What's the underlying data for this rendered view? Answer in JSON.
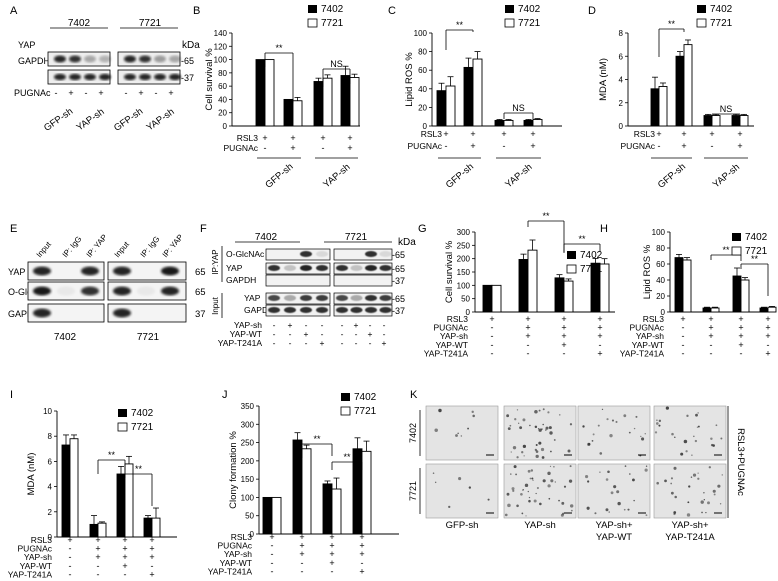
{
  "panel_letters": [
    "A",
    "B",
    "C",
    "D",
    "E",
    "F",
    "G",
    "H",
    "I",
    "J",
    "K"
  ],
  "legend": {
    "dark": "7402",
    "light": "7721"
  },
  "sig": {
    "double": "**",
    "ns": "NS"
  },
  "symbols": {
    "plus": "+",
    "minus": "-"
  },
  "blot_A": {
    "cell_lines": [
      "7402",
      "7721"
    ],
    "unit": "kDa",
    "rows": [
      "YAP",
      "GAPDH"
    ],
    "mw": [
      "-65",
      "-37"
    ],
    "pugnac_label": "PUGNAc",
    "pugnac_signs": [
      "-",
      "+",
      "-",
      "+",
      "-",
      "+",
      "-",
      "+"
    ],
    "groups": [
      "GFP-sh",
      "YAP-sh",
      "GFP-sh",
      "YAP-sh"
    ]
  },
  "blot_E": {
    "lanes": [
      "Input",
      "IP: IgG",
      "IP: YAP",
      "Input",
      "IP: IgG",
      "IP: YAP"
    ],
    "rows": [
      "YAP",
      "O-GlcNAc",
      "GAPDH"
    ],
    "mw": [
      "65",
      "65",
      "37"
    ],
    "cell_lines": [
      "7402",
      "7721"
    ]
  },
  "blot_F": {
    "cell_lines": [
      "7402",
      "7721"
    ],
    "unit": "kDa",
    "ip_label": "IP:YAP",
    "input_label": "Input",
    "ip_rows": [
      "O-GlcNAc",
      "YAP",
      "GAPDH"
    ],
    "ip_mw": [
      "-65",
      "-65",
      "-37"
    ],
    "input_rows": [
      "YAP",
      "GAPDH"
    ],
    "input_mw": [
      "-65",
      "-37"
    ],
    "cond_labels": [
      "YAP-sh",
      "YAP-WT",
      "YAP-T241A"
    ],
    "cond_signs": [
      [
        "-",
        "+",
        "-",
        "-",
        "-",
        "+",
        "-",
        "-"
      ],
      [
        "-",
        "-",
        "+",
        "-",
        "-",
        "-",
        "+",
        "-"
      ],
      [
        "-",
        "-",
        "-",
        "+",
        "-",
        "-",
        "-",
        "+"
      ]
    ]
  },
  "panel_K": {
    "rows": [
      "7402",
      "7721"
    ],
    "cols": [
      "GFP-sh",
      "YAP-sh",
      "YAP-sh+\nYAP-WT",
      "YAP-sh+\nYAP-T241A"
    ],
    "col_line1": [
      "GFP-sh",
      "YAP-sh",
      "YAP-sh+",
      "YAP-sh+"
    ],
    "col_line2": [
      "",
      "",
      "YAP-WT",
      "YAP-T241A"
    ],
    "side_label": "RSL3+PUGNAc"
  },
  "chart_data": [
    {
      "id": "B",
      "type": "bar",
      "ylabel": "Cell survival %",
      "ylim": [
        0,
        140
      ],
      "yticks": [
        0,
        20,
        40,
        60,
        80,
        100,
        120,
        140
      ],
      "series": [
        {
          "name": "7402",
          "values": [
            100,
            40,
            67,
            76
          ]
        },
        {
          "name": "7721",
          "values": [
            100,
            38,
            72,
            73
          ]
        }
      ],
      "errors": [
        [
          0,
          0,
          5,
          14
        ],
        [
          0,
          5,
          5,
          5
        ]
      ],
      "row_labels": [
        "RSL3",
        "PUGNAc"
      ],
      "signs": [
        [
          "+",
          "+",
          "+",
          "+"
        ],
        [
          "-",
          "+",
          "-",
          "+"
        ]
      ],
      "groups": [
        "GFP-sh",
        "YAP-sh"
      ],
      "brackets": [
        {
          "from": 0,
          "to": 1,
          "label": "**"
        },
        {
          "from": 2,
          "to": 3,
          "label": "NS"
        }
      ]
    },
    {
      "id": "C",
      "type": "bar",
      "ylabel": "Lipid ROS %",
      "ylim": [
        0,
        100
      ],
      "yticks": [
        0,
        20,
        40,
        60,
        80,
        100
      ],
      "series": [
        {
          "name": "7402",
          "values": [
            38,
            63,
            6,
            6
          ]
        },
        {
          "name": "7721",
          "values": [
            43,
            72,
            6,
            7
          ]
        }
      ],
      "errors": [
        [
          8,
          10,
          1,
          1
        ],
        [
          10,
          8,
          1,
          1
        ]
      ],
      "row_labels": [
        "RSL3",
        "PUGNAc"
      ],
      "signs": [
        [
          "+",
          "+",
          "+",
          "+"
        ],
        [
          "-",
          "+",
          "-",
          "+"
        ]
      ],
      "groups": [
        "GFP-sh",
        "YAP-sh"
      ],
      "brackets": [
        {
          "from": 0,
          "to": 1,
          "label": "**"
        },
        {
          "from": 2,
          "to": 3,
          "label": "NS"
        }
      ]
    },
    {
      "id": "D",
      "type": "bar",
      "ylabel": "MDA (nM)",
      "ylim": [
        0,
        8
      ],
      "yticks": [
        0,
        2,
        4,
        6,
        8
      ],
      "series": [
        {
          "name": "7402",
          "values": [
            3.2,
            6.0,
            0.9,
            0.9
          ]
        },
        {
          "name": "7721",
          "values": [
            3.4,
            7.0,
            0.9,
            0.9
          ]
        }
      ],
      "errors": [
        [
          1.0,
          0.4,
          0.1,
          0.1
        ],
        [
          0.3,
          0.4,
          0.1,
          0.1
        ]
      ],
      "row_labels": [
        "RSL3",
        "PUGNAc"
      ],
      "signs": [
        [
          "+",
          "+",
          "+",
          "+"
        ],
        [
          "-",
          "+",
          "-",
          "+"
        ]
      ],
      "groups": [
        "GFP-sh",
        "YAP-sh"
      ],
      "brackets": [
        {
          "from": 0,
          "to": 1,
          "label": "**"
        },
        {
          "from": 2,
          "to": 3,
          "label": "NS"
        }
      ]
    },
    {
      "id": "G",
      "type": "bar",
      "ylabel": "Cell survival %",
      "ylim": [
        0,
        300
      ],
      "yticks": [
        0,
        50,
        100,
        150,
        200,
        250,
        300
      ],
      "series": [
        {
          "name": "7402",
          "values": [
            100,
            197,
            128,
            183
          ]
        },
        {
          "name": "7721",
          "values": [
            100,
            232,
            116,
            180
          ]
        }
      ],
      "errors": [
        [
          0,
          20,
          12,
          18
        ],
        [
          0,
          38,
          8,
          20
        ]
      ],
      "row_labels": [
        "RSL3",
        "PUGNAc",
        "YAP-sh",
        "YAP-WT",
        "YAP-T241A"
      ],
      "signs": [
        [
          "+",
          "+",
          "+",
          "+"
        ],
        [
          "-",
          "+",
          "+",
          "+"
        ],
        [
          "-",
          "+",
          "+",
          "+"
        ],
        [
          "-",
          "-",
          "+",
          "-"
        ],
        [
          "-",
          "-",
          "-",
          "+"
        ]
      ],
      "brackets": [
        {
          "from": 1,
          "to": 2,
          "label": "**"
        },
        {
          "from": 2,
          "to": 3,
          "label": "**"
        }
      ]
    },
    {
      "id": "H",
      "type": "bar",
      "ylabel": "Lipid ROS %",
      "ylim": [
        0,
        100
      ],
      "yticks": [
        0,
        20,
        40,
        60,
        80,
        100
      ],
      "series": [
        {
          "name": "7402",
          "values": [
            68,
            5,
            45,
            5
          ]
        },
        {
          "name": "7721",
          "values": [
            65,
            5,
            40,
            6
          ]
        }
      ],
      "errors": [
        [
          4,
          1,
          10,
          1
        ],
        [
          3,
          1,
          3,
          1
        ]
      ],
      "row_labels": [
        "RSL3",
        "PUGNAc",
        "YAP-sh",
        "YAP-WT",
        "YAP-T241A"
      ],
      "signs": [
        [
          "+",
          "+",
          "+",
          "+"
        ],
        [
          "-",
          "+",
          "+",
          "+"
        ],
        [
          "-",
          "+",
          "+",
          "+"
        ],
        [
          "-",
          "-",
          "+",
          "-"
        ],
        [
          "-",
          "-",
          "-",
          "+"
        ]
      ],
      "brackets": [
        {
          "from": 1,
          "to": 2,
          "label": "**"
        },
        {
          "from": 2,
          "to": 3,
          "label": "**"
        }
      ]
    },
    {
      "id": "I",
      "type": "bar",
      "ylabel": "MDA (nM)",
      "ylim": [
        0,
        10
      ],
      "yticks": [
        0,
        2,
        4,
        6,
        8,
        10
      ],
      "series": [
        {
          "name": "7402",
          "values": [
            7.3,
            1.0,
            5.0,
            1.5
          ]
        },
        {
          "name": "7721",
          "values": [
            7.8,
            1.1,
            5.8,
            1.5
          ]
        }
      ],
      "errors": [
        [
          0.8,
          0.7,
          0.6,
          0.2
        ],
        [
          0.3,
          0.1,
          0.6,
          0.8
        ]
      ],
      "row_labels": [
        "RSL3",
        "PUGNAc",
        "YAP-sh",
        "YAP-WT",
        "YAP-T241A"
      ],
      "signs": [
        [
          "+",
          "+",
          "+",
          "+"
        ],
        [
          "-",
          "+",
          "+",
          "+"
        ],
        [
          "-",
          "+",
          "+",
          "+"
        ],
        [
          "-",
          "-",
          "+",
          "-"
        ],
        [
          "-",
          "-",
          "-",
          "+"
        ]
      ],
      "brackets": [
        {
          "from": 1,
          "to": 2,
          "label": "**"
        },
        {
          "from": 2,
          "to": 3,
          "label": "**"
        }
      ]
    },
    {
      "id": "J",
      "type": "bar",
      "ylabel": "Clony formation %",
      "ylim": [
        0,
        350
      ],
      "yticks": [
        0,
        50,
        100,
        150,
        200,
        250,
        300,
        350
      ],
      "series": [
        {
          "name": "7402",
          "values": [
            100,
            257,
            137,
            233
          ]
        },
        {
          "name": "7721",
          "values": [
            100,
            233,
            123,
            226
          ]
        }
      ],
      "errors": [
        [
          0,
          20,
          8,
          30
        ],
        [
          0,
          10,
          30,
          28
        ]
      ],
      "row_labels": [
        "RSL3",
        "PUGNAc",
        "YAP-sh",
        "YAP-WT",
        "YAP-T241A"
      ],
      "signs": [
        [
          "+",
          "+",
          "+",
          "+"
        ],
        [
          "-",
          "+",
          "+",
          "+"
        ],
        [
          "-",
          "+",
          "+",
          "+"
        ],
        [
          "-",
          "-",
          "+",
          "-"
        ],
        [
          "-",
          "-",
          "-",
          "+"
        ]
      ],
      "brackets": [
        {
          "from": 1,
          "to": 2,
          "label": "**"
        },
        {
          "from": 2,
          "to": 3,
          "label": "**"
        }
      ]
    }
  ]
}
